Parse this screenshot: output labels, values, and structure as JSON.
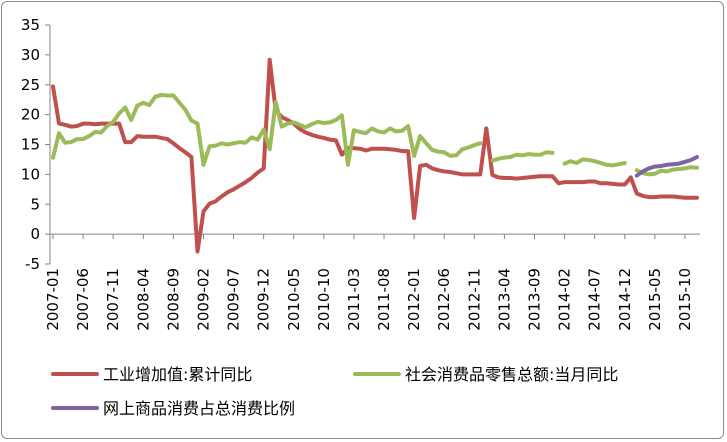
{
  "chart_data": {
    "type": "line",
    "title": "",
    "xlabel": "",
    "ylabel": "",
    "ylim": [
      -5,
      35
    ],
    "yticks": [
      -5,
      0,
      5,
      10,
      15,
      20,
      25,
      30,
      35
    ],
    "grid": false,
    "legend_position": "bottom",
    "x_start": "2007-01",
    "x_end": "2015-12",
    "xtick_labels": [
      "2007-01",
      "2007-06",
      "2007-11",
      "2008-04",
      "2008-09",
      "2009-02",
      "2009-07",
      "2009-12",
      "2010-05",
      "2010-10",
      "2011-03",
      "2011-08",
      "2012-01",
      "2012-06",
      "2012-11",
      "2013-04",
      "2013-09",
      "2014-02",
      "2014-07",
      "2014-12",
      "2015-05",
      "2015-10"
    ],
    "series": [
      {
        "name": "工业增加值:累计同比",
        "color": "#c0504d",
        "points": [
          [
            "2007-01",
            24.7
          ],
          [
            "2007-02",
            18.5
          ],
          [
            "2007-03",
            18.3
          ],
          [
            "2007-04",
            18.0
          ],
          [
            "2007-05",
            18.1
          ],
          [
            "2007-06",
            18.5
          ],
          [
            "2007-07",
            18.5
          ],
          [
            "2007-08",
            18.4
          ],
          [
            "2007-09",
            18.5
          ],
          [
            "2007-10",
            18.5
          ],
          [
            "2007-11",
            18.5
          ],
          [
            "2007-12",
            18.5
          ],
          [
            "2008-01",
            15.4
          ],
          [
            "2008-02",
            15.4
          ],
          [
            "2008-03",
            16.4
          ],
          [
            "2008-04",
            16.3
          ],
          [
            "2008-05",
            16.3
          ],
          [
            "2008-06",
            16.3
          ],
          [
            "2008-07",
            16.1
          ],
          [
            "2008-08",
            15.9
          ],
          [
            "2008-09",
            15.2
          ],
          [
            "2008-10",
            14.4
          ],
          [
            "2008-11",
            13.7
          ],
          [
            "2008-12",
            12.9
          ],
          [
            "2009-01",
            -2.9
          ],
          [
            "2009-02",
            3.8
          ],
          [
            "2009-03",
            5.1
          ],
          [
            "2009-04",
            5.5
          ],
          [
            "2009-05",
            6.3
          ],
          [
            "2009-06",
            7.0
          ],
          [
            "2009-07",
            7.5
          ],
          [
            "2009-08",
            8.1
          ],
          [
            "2009-09",
            8.7
          ],
          [
            "2009-10",
            9.4
          ],
          [
            "2009-11",
            10.3
          ],
          [
            "2009-12",
            11.0
          ],
          [
            "2010-01",
            29.2
          ],
          [
            "2010-02",
            20.7
          ],
          [
            "2010-03",
            19.6
          ],
          [
            "2010-04",
            19.1
          ],
          [
            "2010-05",
            18.5
          ],
          [
            "2010-06",
            17.6
          ],
          [
            "2010-07",
            17.0
          ],
          [
            "2010-08",
            16.6
          ],
          [
            "2010-09",
            16.3
          ],
          [
            "2010-10",
            16.1
          ],
          [
            "2010-11",
            15.8
          ],
          [
            "2010-12",
            15.7
          ],
          [
            "2011-01",
            13.3
          ],
          [
            "2011-02",
            14.4
          ],
          [
            "2011-03",
            14.4
          ],
          [
            "2011-04",
            14.3
          ],
          [
            "2011-05",
            14.0
          ],
          [
            "2011-06",
            14.3
          ],
          [
            "2011-07",
            14.3
          ],
          [
            "2011-08",
            14.3
          ],
          [
            "2011-09",
            14.2
          ],
          [
            "2011-10",
            14.1
          ],
          [
            "2011-11",
            13.9
          ],
          [
            "2011-12",
            13.9
          ],
          [
            "2012-01",
            2.7
          ],
          [
            "2012-02",
            11.4
          ],
          [
            "2012-03",
            11.6
          ],
          [
            "2012-04",
            11.0
          ],
          [
            "2012-05",
            10.7
          ],
          [
            "2012-06",
            10.5
          ],
          [
            "2012-07",
            10.4
          ],
          [
            "2012-08",
            10.2
          ],
          [
            "2012-09",
            10.0
          ],
          [
            "2012-10",
            10.0
          ],
          [
            "2012-11",
            10.0
          ],
          [
            "2012-12",
            10.0
          ],
          [
            "2013-01",
            17.7
          ],
          [
            "2013-02",
            9.9
          ],
          [
            "2013-03",
            9.5
          ],
          [
            "2013-04",
            9.4
          ],
          [
            "2013-05",
            9.4
          ],
          [
            "2013-06",
            9.3
          ],
          [
            "2013-07",
            9.4
          ],
          [
            "2013-08",
            9.5
          ],
          [
            "2013-09",
            9.6
          ],
          [
            "2013-10",
            9.7
          ],
          [
            "2013-11",
            9.7
          ],
          [
            "2013-12",
            9.7
          ],
          [
            "2014-01",
            8.5
          ],
          [
            "2014-02",
            8.7
          ],
          [
            "2014-03",
            8.7
          ],
          [
            "2014-04",
            8.7
          ],
          [
            "2014-05",
            8.7
          ],
          [
            "2014-06",
            8.8
          ],
          [
            "2014-07",
            8.8
          ],
          [
            "2014-08",
            8.5
          ],
          [
            "2014-09",
            8.5
          ],
          [
            "2014-10",
            8.4
          ],
          [
            "2014-11",
            8.3
          ],
          [
            "2014-12",
            8.3
          ],
          [
            "2015-01",
            9.5
          ],
          [
            "2015-02",
            6.8
          ],
          [
            "2015-03",
            6.4
          ],
          [
            "2015-04",
            6.2
          ],
          [
            "2015-05",
            6.2
          ],
          [
            "2015-06",
            6.3
          ],
          [
            "2015-07",
            6.3
          ],
          [
            "2015-08",
            6.3
          ],
          [
            "2015-09",
            6.2
          ],
          [
            "2015-10",
            6.1
          ],
          [
            "2015-11",
            6.1
          ],
          [
            "2015-12",
            6.1
          ]
        ]
      },
      {
        "name": "社会消费品零售总额:当月同比",
        "color": "#9bbb59",
        "points": [
          [
            "2007-01",
            12.8
          ],
          [
            "2007-02",
            16.9
          ],
          [
            "2007-03",
            15.3
          ],
          [
            "2007-04",
            15.4
          ],
          [
            "2007-05",
            15.9
          ],
          [
            "2007-06",
            15.9
          ],
          [
            "2007-07",
            16.4
          ],
          [
            "2007-08",
            17.1
          ],
          [
            "2007-09",
            17.0
          ],
          [
            "2007-10",
            18.1
          ],
          [
            "2007-11",
            18.8
          ],
          [
            "2007-12",
            20.2
          ],
          [
            "2008-01",
            21.2
          ],
          [
            "2008-02",
            19.1
          ],
          [
            "2008-03",
            21.5
          ],
          [
            "2008-04",
            22.0
          ],
          [
            "2008-05",
            21.6
          ],
          [
            "2008-06",
            23.0
          ],
          [
            "2008-07",
            23.3
          ],
          [
            "2008-08",
            23.2
          ],
          [
            "2008-09",
            23.2
          ],
          [
            "2008-10",
            22.0
          ],
          [
            "2008-11",
            20.8
          ],
          [
            "2008-12",
            19.0
          ],
          [
            "2009-01",
            18.5
          ],
          [
            "2009-02",
            11.6
          ],
          [
            "2009-03",
            14.7
          ],
          [
            "2009-04",
            14.8
          ],
          [
            "2009-05",
            15.2
          ],
          [
            "2009-06",
            15.0
          ],
          [
            "2009-07",
            15.2
          ],
          [
            "2009-08",
            15.4
          ],
          [
            "2009-09",
            15.3
          ],
          [
            "2009-10",
            16.2
          ],
          [
            "2009-11",
            15.8
          ],
          [
            "2009-12",
            17.5
          ],
          [
            "2010-01",
            14.2
          ],
          [
            "2010-02",
            22.1
          ],
          [
            "2010-03",
            18.0
          ],
          [
            "2010-04",
            18.5
          ],
          [
            "2010-05",
            18.7
          ],
          [
            "2010-06",
            18.3
          ],
          [
            "2010-07",
            17.9
          ],
          [
            "2010-08",
            18.4
          ],
          [
            "2010-09",
            18.8
          ],
          [
            "2010-10",
            18.6
          ],
          [
            "2010-11",
            18.7
          ],
          [
            "2010-12",
            19.1
          ],
          [
            "2011-01",
            19.9
          ],
          [
            "2011-02",
            11.6
          ],
          [
            "2011-03",
            17.4
          ],
          [
            "2011-04",
            17.1
          ],
          [
            "2011-05",
            16.9
          ],
          [
            "2011-06",
            17.7
          ],
          [
            "2011-07",
            17.2
          ],
          [
            "2011-08",
            17.0
          ],
          [
            "2011-09",
            17.7
          ],
          [
            "2011-10",
            17.2
          ],
          [
            "2011-11",
            17.3
          ],
          [
            "2011-12",
            18.1
          ],
          [
            "2012-01",
            13.1
          ],
          [
            "2012-02",
            16.4
          ],
          [
            "2012-03",
            15.2
          ],
          [
            "2012-04",
            14.1
          ],
          [
            "2012-05",
            13.8
          ],
          [
            "2012-06",
            13.7
          ],
          [
            "2012-07",
            13.1
          ],
          [
            "2012-08",
            13.2
          ],
          [
            "2012-09",
            14.2
          ],
          [
            "2012-10",
            14.5
          ],
          [
            "2012-11",
            14.9
          ],
          [
            "2012-12",
            15.2
          ],
          [
            "2013-01",
            null
          ],
          [
            "2013-02",
            12.3
          ],
          [
            "2013-03",
            12.6
          ],
          [
            "2013-04",
            12.8
          ],
          [
            "2013-05",
            12.9
          ],
          [
            "2013-06",
            13.3
          ],
          [
            "2013-07",
            13.2
          ],
          [
            "2013-08",
            13.4
          ],
          [
            "2013-09",
            13.3
          ],
          [
            "2013-10",
            13.3
          ],
          [
            "2013-11",
            13.7
          ],
          [
            "2013-12",
            13.6
          ],
          [
            "2014-01",
            null
          ],
          [
            "2014-02",
            11.8
          ],
          [
            "2014-03",
            12.2
          ],
          [
            "2014-04",
            11.9
          ],
          [
            "2014-05",
            12.5
          ],
          [
            "2014-06",
            12.4
          ],
          [
            "2014-07",
            12.2
          ],
          [
            "2014-08",
            11.9
          ],
          [
            "2014-09",
            11.6
          ],
          [
            "2014-10",
            11.5
          ],
          [
            "2014-11",
            11.7
          ],
          [
            "2014-12",
            11.9
          ],
          [
            "2015-01",
            null
          ],
          [
            "2015-02",
            10.7
          ],
          [
            "2015-03",
            10.2
          ],
          [
            "2015-04",
            10.0
          ],
          [
            "2015-05",
            10.1
          ],
          [
            "2015-06",
            10.6
          ],
          [
            "2015-07",
            10.5
          ],
          [
            "2015-08",
            10.8
          ],
          [
            "2015-09",
            10.9
          ],
          [
            "2015-10",
            11.0
          ],
          [
            "2015-11",
            11.2
          ],
          [
            "2015-12",
            11.1
          ]
        ]
      },
      {
        "name": "网上商品消费占总消费比例",
        "color": "#8064a2",
        "points": [
          [
            "2015-02",
            9.8
          ],
          [
            "2015-03",
            10.5
          ],
          [
            "2015-04",
            11.0
          ],
          [
            "2015-05",
            11.3
          ],
          [
            "2015-06",
            11.4
          ],
          [
            "2015-07",
            11.6
          ],
          [
            "2015-08",
            11.7
          ],
          [
            "2015-09",
            11.8
          ],
          [
            "2015-10",
            12.1
          ],
          [
            "2015-11",
            12.4
          ],
          [
            "2015-12",
            12.9
          ]
        ]
      }
    ]
  }
}
